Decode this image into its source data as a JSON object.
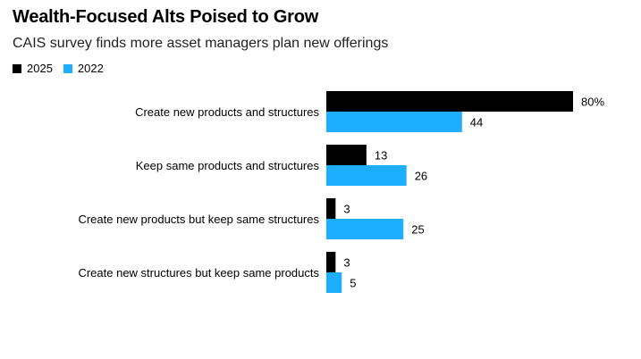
{
  "chart_data": {
    "type": "bar",
    "orientation": "horizontal",
    "title": "Wealth-Focused Alts Poised to Grow",
    "subtitle": "CAIS survey finds more asset managers plan new offerings",
    "categories": [
      "Create new products and structures",
      "Keep same products and structures",
      "Create new products but keep same structures",
      "Create new structures but keep same products"
    ],
    "series": [
      {
        "name": "2025",
        "color": "#000000",
        "values": [
          80,
          13,
          3,
          3
        ],
        "labels": [
          "80%",
          "13",
          "3",
          "3"
        ]
      },
      {
        "name": "2022",
        "color": "#1eaeff",
        "values": [
          44,
          26,
          25,
          5
        ],
        "labels": [
          "44",
          "26",
          "25",
          "5"
        ]
      }
    ],
    "xlim": [
      0,
      80
    ],
    "grid": false,
    "legend_position": "top-left"
  }
}
